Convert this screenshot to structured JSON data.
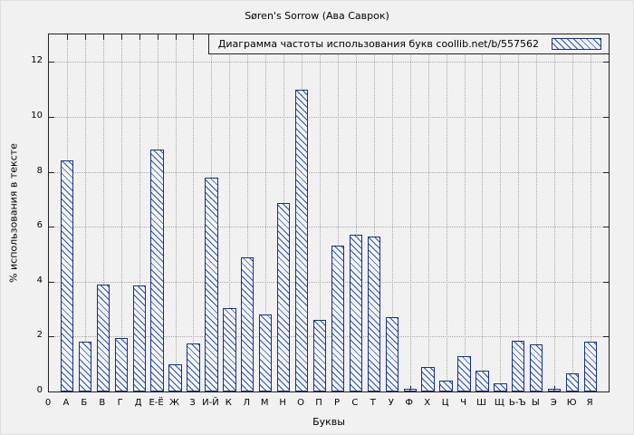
{
  "title": "Søren's Sorrow (Ава Саврок)",
  "legend": {
    "text": "Диаграмма частоты использования букв  coollib.net/b/557562"
  },
  "colors": {
    "bar_border": "#16308a",
    "bar_hatch": "#2a50b4",
    "background": "#f1f1f1",
    "grid": "#a8a8a8"
  },
  "chart_data": {
    "type": "bar",
    "title": "Søren's Sorrow (Ава Саврок)",
    "legend": "Диаграмма частоты использования букв  coollib.net/b/557562",
    "legend_position": "top-right",
    "grid": true,
    "bar_style": "hatched",
    "xlabel": "Буквы",
    "ylabel": "% использования в тексте",
    "ylim": [
      0,
      13
    ],
    "yticks": [
      0,
      2,
      4,
      6,
      8,
      10,
      12
    ],
    "origin_label": "0",
    "categories": [
      "А",
      "Б",
      "В",
      "Г",
      "Д",
      "Е-Ё",
      "Ж",
      "З",
      "И-Й",
      "К",
      "Л",
      "М",
      "Н",
      "О",
      "П",
      "Р",
      "С",
      "Т",
      "У",
      "Ф",
      "Х",
      "Ц",
      "Ч",
      "Ш",
      "Щ",
      "Ь-Ъ",
      "Ы",
      "Э",
      "Ю",
      "Я"
    ],
    "values": [
      8.4,
      1.8,
      3.9,
      1.95,
      3.85,
      8.8,
      1.0,
      1.75,
      7.8,
      3.05,
      4.9,
      2.8,
      6.85,
      11.0,
      2.6,
      5.3,
      5.7,
      5.65,
      2.7,
      0.1,
      0.9,
      0.4,
      1.3,
      0.75,
      0.3,
      1.85,
      1.7,
      0.1,
      0.65,
      1.8
    ]
  }
}
